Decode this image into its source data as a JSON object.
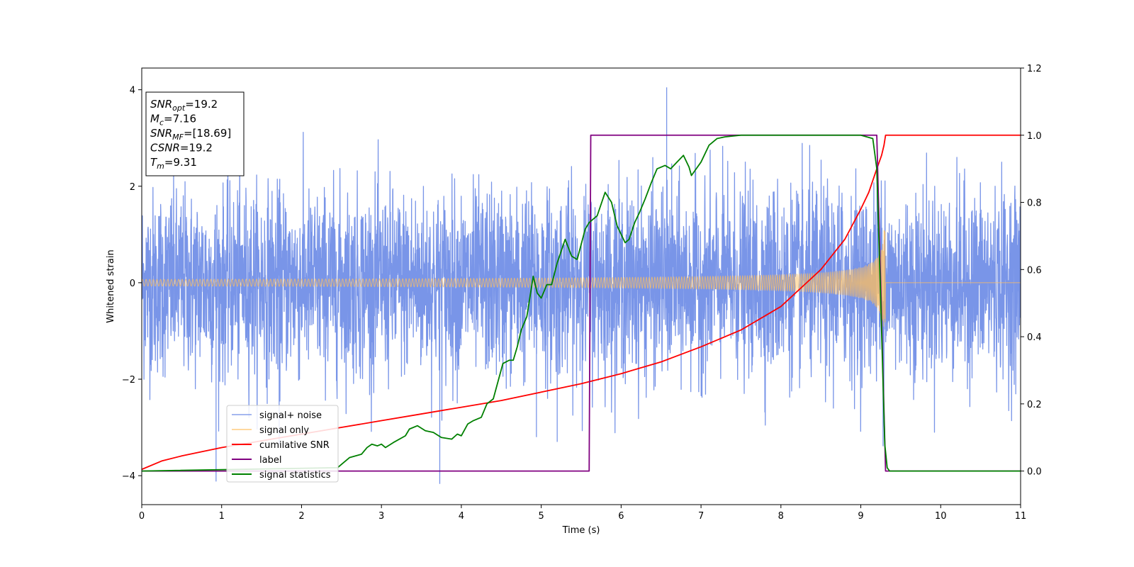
{
  "chart_data": {
    "type": "line",
    "xlabel": "Time (s)",
    "ylabel_left": "Whitened strain",
    "xlim": [
      0,
      11
    ],
    "ylim_left": [
      -4.6,
      4.45
    ],
    "ylim_right": [
      -0.1,
      1.2
    ],
    "x_ticks": [
      0,
      1,
      2,
      3,
      4,
      5,
      6,
      7,
      8,
      9,
      10,
      11
    ],
    "y_left_ticks": [
      -4,
      -2,
      0,
      2,
      4
    ],
    "y_right_ticks": [
      0.0,
      0.2,
      0.4,
      0.6,
      0.8,
      1.0,
      1.2
    ],
    "grid": false,
    "legend_position": "lower-left",
    "annotation": {
      "lines": [
        {
          "base": "SNR",
          "sub": "opt",
          "value": "=19.2"
        },
        {
          "base": "M",
          "sub": "c",
          "value": "=7.16"
        },
        {
          "base": "SNR",
          "sub": "MF",
          "value": "=[18.69]"
        },
        {
          "base": "CSNR",
          "sub": "",
          "value": "=19.2"
        },
        {
          "base": "T",
          "sub": "m",
          "value": "=9.31"
        }
      ]
    },
    "series": [
      {
        "name": "signal+ noise",
        "axis": "left",
        "color": "#6a8ae6",
        "description_values": {
          "kind": "noise",
          "range": [
            -4.15,
            4.05
          ],
          "typical_amplitude": 1.7,
          "spikes": [
            [
              0.93,
              -4.12
            ],
            [
              3.73,
              -4.17
            ],
            [
              6.57,
              4.05
            ],
            [
              1.72,
              -3.35
            ],
            [
              4.94,
              -3.2
            ],
            [
              5.2,
              -3.3
            ]
          ]
        }
      },
      {
        "name": "signal only",
        "axis": "left",
        "color": "#ffbf5f",
        "description_values": {
          "kind": "chirp",
          "start_amplitude": 0.08,
          "amplitude_at_5": 0.12,
          "amplitude_at_8": 0.3,
          "amplitude_at_9": 0.6,
          "peak_amplitude": 1.1,
          "merger_time": 9.31
        }
      },
      {
        "name": "cumilative SNR",
        "axis": "right",
        "color": "#ff0000",
        "x": [
          0,
          0.25,
          0.5,
          1,
          1.5,
          2,
          2.5,
          3,
          3.5,
          4,
          4.5,
          5,
          5.5,
          6,
          6.5,
          7,
          7.5,
          8,
          8.5,
          8.8,
          9.0,
          9.1,
          9.2,
          9.26,
          9.29,
          9.31,
          11
        ],
        "y": [
          0.005,
          0.03,
          0.045,
          0.07,
          0.09,
          0.11,
          0.13,
          0.15,
          0.17,
          0.19,
          0.21,
          0.235,
          0.26,
          0.29,
          0.325,
          0.37,
          0.42,
          0.49,
          0.6,
          0.69,
          0.78,
          0.83,
          0.9,
          0.94,
          0.97,
          1.0,
          1.0
        ]
      },
      {
        "name": "label",
        "axis": "right",
        "color": "#800080",
        "x": [
          0,
          5.6,
          5.62,
          9.2,
          9.31,
          11
        ],
        "y": [
          0,
          0,
          1,
          1,
          0,
          0
        ]
      },
      {
        "name": "signal statistics",
        "axis": "right",
        "color": "#008000",
        "x": [
          0,
          2.45,
          2.6,
          2.75,
          2.82,
          2.88,
          2.95,
          3.0,
          3.05,
          3.15,
          3.3,
          3.35,
          3.45,
          3.55,
          3.65,
          3.75,
          3.88,
          3.95,
          4.0,
          4.08,
          4.15,
          4.25,
          4.32,
          4.4,
          4.52,
          4.6,
          4.65,
          4.7,
          4.75,
          4.82,
          4.9,
          4.95,
          5.0,
          5.07,
          5.13,
          5.2,
          5.3,
          5.38,
          5.45,
          5.55,
          5.6,
          5.7,
          5.8,
          5.88,
          5.95,
          6.05,
          6.1,
          6.17,
          6.23,
          6.3,
          6.38,
          6.45,
          6.55,
          6.62,
          6.7,
          6.78,
          6.85,
          6.88,
          7.0,
          7.1,
          7.2,
          7.3,
          7.5,
          7.8,
          8.0,
          8.3,
          8.6,
          8.8,
          9.0,
          9.15,
          9.2,
          9.25,
          9.3,
          9.33,
          9.36,
          9.42,
          9.6,
          11
        ],
        "y": [
          0.0,
          0.01,
          0.04,
          0.05,
          0.07,
          0.08,
          0.075,
          0.08,
          0.07,
          0.085,
          0.105,
          0.125,
          0.135,
          0.12,
          0.115,
          0.1,
          0.095,
          0.11,
          0.105,
          0.14,
          0.15,
          0.16,
          0.2,
          0.215,
          0.32,
          0.33,
          0.33,
          0.37,
          0.42,
          0.46,
          0.58,
          0.53,
          0.515,
          0.555,
          0.555,
          0.62,
          0.69,
          0.64,
          0.63,
          0.72,
          0.74,
          0.76,
          0.83,
          0.8,
          0.73,
          0.68,
          0.69,
          0.74,
          0.77,
          0.81,
          0.86,
          0.9,
          0.91,
          0.9,
          0.92,
          0.94,
          0.905,
          0.88,
          0.92,
          0.97,
          0.99,
          0.995,
          1.0,
          1.0,
          1.0,
          1.0,
          1.0,
          1.0,
          1.0,
          0.99,
          0.9,
          0.5,
          0.08,
          0.01,
          0.0,
          0.0,
          0.0,
          0.0
        ]
      }
    ]
  }
}
